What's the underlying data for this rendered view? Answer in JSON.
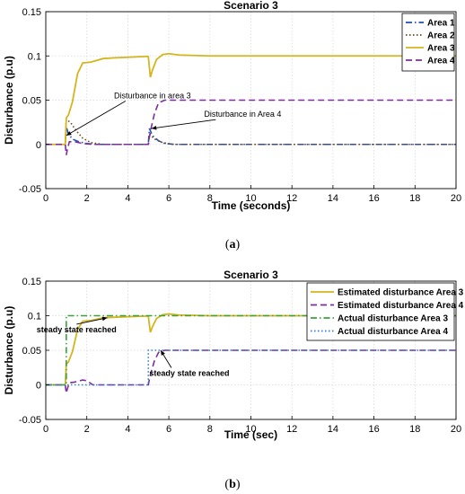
{
  "captions": {
    "a": "a",
    "b": "b"
  },
  "chart_data": [
    {
      "type": "line",
      "title": "Scenario 3",
      "xlabel": "Time (seconds)",
      "ylabel": "Disturbance (p.u)",
      "xlim": [
        0,
        20
      ],
      "ylim": [
        -0.05,
        0.15
      ],
      "xticks": [
        0,
        2,
        4,
        6,
        8,
        10,
        12,
        14,
        16,
        18,
        20
      ],
      "yticks": [
        -0.05,
        0,
        0.05,
        0.1,
        0.15
      ],
      "ytick_labels": [
        "-0.05",
        "0",
        "0.05",
        "0.1",
        "0.15"
      ],
      "grid": true,
      "legend_position": "top-right",
      "series": [
        {
          "name": "Area 1",
          "color": "#1f4fb4",
          "dash": "dashdot",
          "x": [
            0,
            0.95,
            1.0,
            1.1,
            1.3,
            1.6,
            2.0,
            2.5,
            5.0,
            5.05,
            5.2,
            5.5,
            5.8,
            6.3,
            7,
            20
          ],
          "y": [
            0,
            0,
            0.02,
            0.012,
            0.006,
            0.003,
            0.001,
            0,
            0,
            0.018,
            0.01,
            0.004,
            0.001,
            0,
            0,
            0
          ]
        },
        {
          "name": "Area 2",
          "color": "#6b4a1a",
          "dash": "dotted",
          "x": [
            0,
            0.95,
            1.0,
            1.2,
            1.5,
            1.8,
            2.2,
            2.8,
            5.0,
            5.05,
            5.3,
            5.7,
            6.2,
            7,
            20
          ],
          "y": [
            0,
            0,
            0.028,
            0.025,
            0.015,
            0.007,
            0.002,
            0,
            0,
            0.012,
            0.006,
            0.002,
            0,
            0,
            0
          ]
        },
        {
          "name": "Area 3",
          "color": "#d4b51e",
          "dash": "solid",
          "x": [
            0,
            0.95,
            1.0,
            1.1,
            1.3,
            1.55,
            1.8,
            2.2,
            2.8,
            3.5,
            4.5,
            4.98,
            5.0,
            5.1,
            5.2,
            5.4,
            5.7,
            6.0,
            6.5,
            8,
            20
          ],
          "y": [
            0,
            0,
            0.03,
            0.033,
            0.048,
            0.08,
            0.092,
            0.093,
            0.097,
            0.098,
            0.099,
            0.0995,
            0.099,
            0.076,
            0.084,
            0.096,
            0.1015,
            0.1025,
            0.101,
            0.1,
            0.1
          ]
        },
        {
          "name": "Area 4",
          "color": "#7d2e9e",
          "dash": "dashed",
          "x": [
            0,
            0.95,
            1.0,
            1.05,
            1.15,
            1.4,
            1.8,
            2.3,
            5.0,
            5.05,
            5.15,
            5.3,
            5.5,
            5.8,
            6.2,
            7,
            20
          ],
          "y": [
            0,
            0,
            -0.012,
            -0.006,
            0.003,
            0.003,
            0.001,
            0,
            0,
            0.008,
            0.02,
            0.035,
            0.047,
            0.05,
            0.05,
            0.05,
            0.05
          ]
        }
      ],
      "annotations": [
        {
          "text": "Disturbance in area 3",
          "x": 5.2,
          "y": 0.052,
          "arrow_to": [
            1.0,
            0.01
          ]
        },
        {
          "text": "Disturbance in Area 4",
          "x": 9.6,
          "y": 0.031,
          "arrow_to": [
            5.15,
            0.018
          ]
        }
      ]
    },
    {
      "type": "line",
      "title": "Scenario 3",
      "xlabel": "Time (sec)",
      "ylabel": "Disturbance (p.u)",
      "xlim": [
        0,
        20
      ],
      "ylim": [
        -0.05,
        0.15
      ],
      "xticks": [
        0,
        2,
        4,
        6,
        8,
        10,
        12,
        14,
        16,
        18,
        20
      ],
      "yticks": [
        -0.05,
        0,
        0.05,
        0.1,
        0.15
      ],
      "ytick_labels": [
        "-0.05",
        "0",
        "0.05",
        "0.1",
        "0.15"
      ],
      "grid": true,
      "legend_position": "top-right",
      "series": [
        {
          "name": "Estimated disturbance Area 3",
          "color": "#d4b51e",
          "dash": "solid",
          "x": [
            0,
            0.95,
            1.0,
            1.1,
            1.3,
            1.55,
            1.8,
            2.2,
            2.8,
            3.5,
            4.5,
            4.98,
            5.0,
            5.1,
            5.2,
            5.4,
            5.7,
            6.0,
            6.5,
            8,
            20
          ],
          "y": [
            0,
            0,
            0.03,
            0.033,
            0.048,
            0.08,
            0.092,
            0.093,
            0.097,
            0.098,
            0.099,
            0.0995,
            0.099,
            0.076,
            0.084,
            0.096,
            0.1015,
            0.1025,
            0.101,
            0.1,
            0.1
          ]
        },
        {
          "name": "Estimated disturbance Area 4",
          "color": "#7d2e9e",
          "dash": "dashed",
          "x": [
            0,
            0.95,
            1.0,
            1.05,
            1.15,
            1.4,
            1.8,
            2.0,
            2.3,
            5.0,
            5.05,
            5.15,
            5.3,
            5.5,
            5.8,
            6.2,
            7,
            20
          ],
          "y": [
            0,
            0,
            -0.012,
            -0.006,
            0.003,
            0.004,
            0.007,
            0.006,
            0,
            0,
            0.008,
            0.02,
            0.035,
            0.047,
            0.05,
            0.05,
            0.05,
            0.05
          ]
        },
        {
          "name": "Actual disturbance Area 3",
          "color": "#3aa23a",
          "dash": "dashdot",
          "x": [
            0,
            1.0,
            1.0,
            20
          ],
          "y": [
            0,
            0,
            0.1,
            0.1
          ]
        },
        {
          "name": "Actual disturbance Area 4",
          "color": "#2f7fd6",
          "dash": "dotted",
          "x": [
            0,
            5.0,
            5.0,
            20
          ],
          "y": [
            0,
            0,
            0.05,
            0.05
          ]
        }
      ],
      "annotations": [
        {
          "text": "steady state reached",
          "x": 1.5,
          "y": 0.076,
          "arrow_to": [
            3.0,
            0.097
          ]
        },
        {
          "text": "steady state reached",
          "x": 7.0,
          "y": 0.013,
          "arrow_to": [
            5.6,
            0.05
          ]
        }
      ]
    }
  ]
}
